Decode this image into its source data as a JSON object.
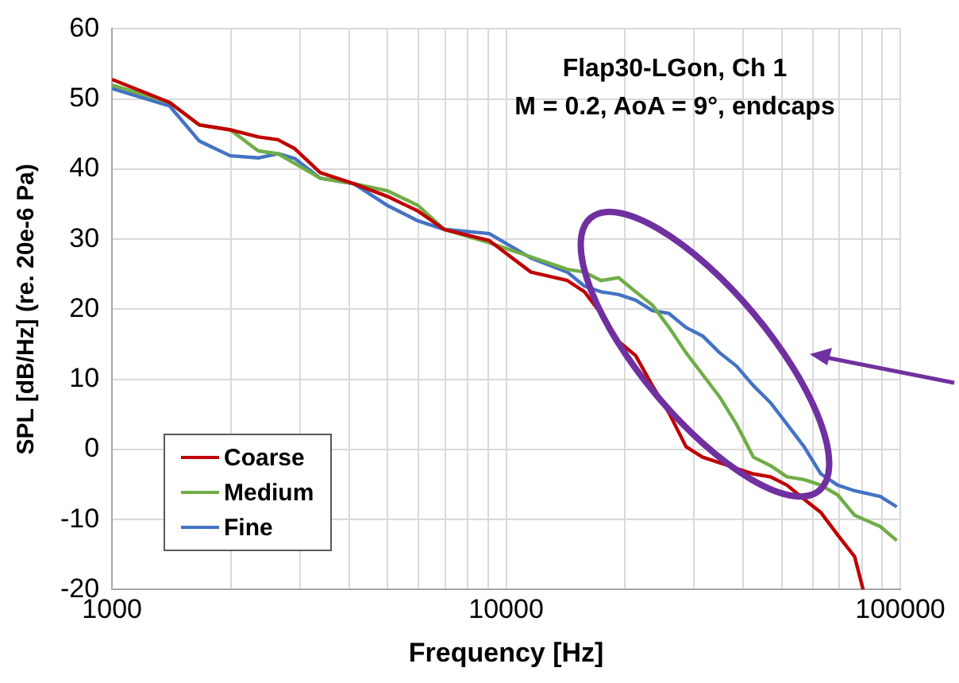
{
  "chart_data": {
    "type": "line",
    "title": "Flap30-LGon, Ch 1",
    "subtitle": "M = 0.2, AoA = 9°, endcaps",
    "xlabel": "Frequency [Hz]",
    "ylabel": "SPL [dB/Hz] (re. 20e-6 Pa)",
    "log": "x",
    "grid": true,
    "legend": "bottom left",
    "marker": "none",
    "line_style": "solid",
    "xlim": [
      1000,
      100000
    ],
    "xticks": [
      1000,
      {
        "value": 2000,
        "label": null
      },
      {
        "value": 3000,
        "label": null
      },
      {
        "value": 4000,
        "label": null
      },
      {
        "value": 5000,
        "label": null
      },
      {
        "value": 6000,
        "label": null
      },
      {
        "value": 7000,
        "label": null
      },
      {
        "value": 8000,
        "label": null
      },
      {
        "value": 9000,
        "label": null
      },
      10000,
      {
        "value": 20000,
        "label": null
      },
      {
        "value": 30000,
        "label": null
      },
      {
        "value": 40000,
        "label": null
      },
      {
        "value": 50000,
        "label": null
      },
      {
        "value": 60000,
        "label": null
      },
      {
        "value": 70000,
        "label": null
      },
      {
        "value": 80000,
        "label": null
      },
      {
        "value": 90000,
        "label": null
      },
      100000
    ],
    "ylim": [
      -20,
      60
    ],
    "yticks": [
      -20,
      -10,
      0,
      10,
      20,
      30,
      40,
      50,
      60
    ],
    "series": [
      {
        "name": "Coarse",
        "color": "#c00000",
        "x": [
          1000,
          1400,
          1665,
          1995,
          2350,
          2635,
          2910,
          3375,
          4110,
          5000,
          5980,
          6960,
          9060,
          11560,
          14300,
          15800,
          17400,
          19300,
          21300,
          23500,
          25900,
          28600,
          31500,
          34800,
          38400,
          42400,
          46800,
          51600,
          57000,
          62900,
          69400,
          76600,
          80500
        ],
        "values": [
          52.8,
          49.5,
          46.3,
          45.6,
          44.6,
          44.2,
          42.9,
          39.5,
          37.9,
          36.1,
          34,
          31.4,
          29.8,
          25.3,
          24.1,
          22.5,
          19.4,
          15.4,
          13.4,
          9.1,
          5.2,
          0.4,
          -1.1,
          -1.9,
          -2.7,
          -3.5,
          -3.9,
          -5.1,
          -7.1,
          -9,
          -12.2,
          -15.3,
          -20
        ]
      },
      {
        "name": "Medium",
        "color": "#70ad47",
        "x": [
          1000,
          1400,
          1665,
          1995,
          2350,
          2635,
          2910,
          3375,
          4110,
          5000,
          5980,
          6960,
          9060,
          11800,
          14300,
          15800,
          17400,
          19300,
          21300,
          23500,
          25900,
          28600,
          31500,
          34800,
          38400,
          42400,
          46800,
          51600,
          57000,
          62900,
          69400,
          76600,
          89000,
          98000
        ],
        "values": [
          52,
          49.5,
          46.3,
          45.6,
          42.6,
          42.2,
          40.8,
          38.7,
          37.9,
          36.9,
          34.8,
          31.4,
          29.5,
          27.3,
          25.7,
          25.3,
          24.1,
          24.5,
          22.5,
          20.6,
          17.4,
          13.8,
          10.7,
          7.5,
          3.6,
          -1.1,
          -2.3,
          -3.9,
          -4.3,
          -5.1,
          -6.5,
          -9.4,
          -11,
          -13
        ]
      },
      {
        "name": "Fine",
        "color": "#4472c4",
        "x": [
          1000,
          1400,
          1665,
          1995,
          2350,
          2635,
          2910,
          3375,
          4110,
          5000,
          5980,
          6960,
          9060,
          11560,
          14300,
          15800,
          17400,
          19300,
          21300,
          23500,
          25900,
          28600,
          31500,
          34800,
          38400,
          42400,
          46800,
          51600,
          57000,
          62900,
          69400,
          76600,
          89000,
          98000
        ],
        "values": [
          51.5,
          49,
          44,
          41.9,
          41.6,
          42.2,
          41.5,
          38.7,
          37.9,
          34.8,
          32.6,
          31.4,
          30.8,
          27.3,
          25.3,
          23.3,
          22.5,
          22.1,
          21.3,
          19.8,
          19.4,
          17.4,
          16.2,
          13.8,
          11.9,
          9.1,
          6.7,
          3.6,
          0.4,
          -3.5,
          -5.1,
          -5.9,
          -6.7,
          -8.2
        ]
      }
    ]
  }
}
